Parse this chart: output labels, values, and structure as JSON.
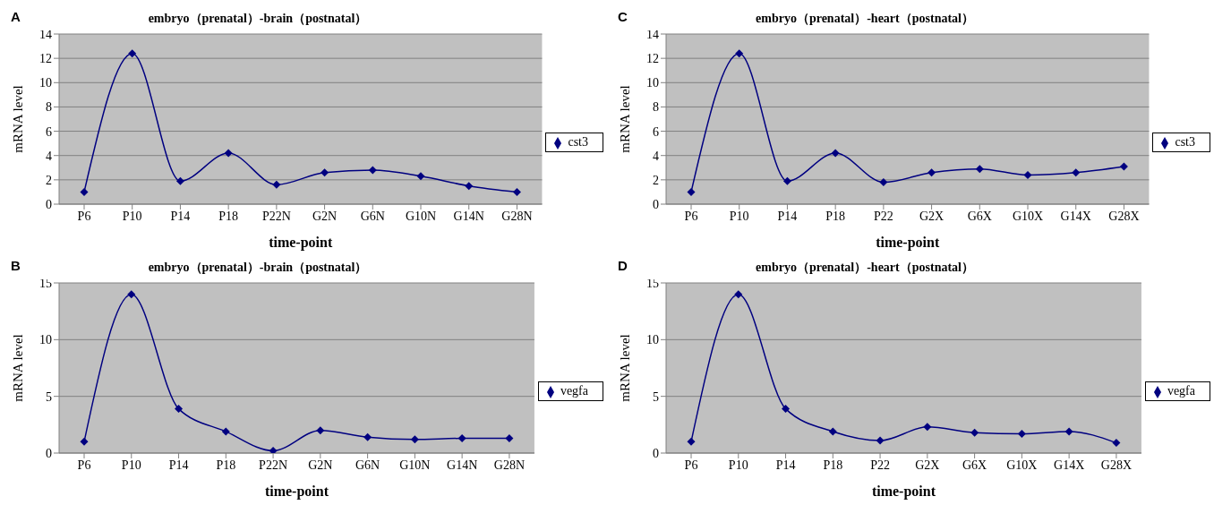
{
  "chart_data": [
    {
      "type": "line",
      "title": "embryo（prenatal）-brain（postnatal）",
      "annotations": [
        "A"
      ],
      "xlabel": "time-point",
      "ylabel": "mRNA level",
      "categories": [
        "P6",
        "P10",
        "P14",
        "P18",
        "P22N",
        "G2N",
        "G6N",
        "G10N",
        "G14N",
        "G28N"
      ],
      "series": [
        {
          "name": "cst3",
          "color": "#000080",
          "values": [
            1.0,
            12.4,
            1.9,
            4.2,
            1.6,
            2.6,
            2.8,
            2.3,
            1.5,
            1.0
          ]
        }
      ],
      "ylim": [
        0,
        14
      ],
      "yticks": [
        0,
        2,
        4,
        6,
        8,
        10,
        12,
        14
      ],
      "grid": "y",
      "legend": "right",
      "marker": "diamond",
      "line_style": "solid"
    },
    {
      "type": "line",
      "title": "embryo（prenatal）-heart（postnatal）",
      "annotations": [
        "C"
      ],
      "xlabel": "time-point",
      "ylabel": "mRNA level",
      "categories": [
        "P6",
        "P10",
        "P14",
        "P18",
        "P22",
        "G2X",
        "G6X",
        "G10X",
        "G14X",
        "G28X"
      ],
      "series": [
        {
          "name": "cst3",
          "color": "#000080",
          "values": [
            1.0,
            12.4,
            1.9,
            4.2,
            1.8,
            2.6,
            2.9,
            2.4,
            2.6,
            3.1
          ]
        }
      ],
      "ylim": [
        0,
        14
      ],
      "yticks": [
        0,
        2,
        4,
        6,
        8,
        10,
        12,
        14
      ],
      "grid": "y",
      "legend": "right",
      "marker": "diamond",
      "line_style": "solid"
    },
    {
      "type": "line",
      "title": "embryo（prenatal）-brain（postnatal）",
      "annotations": [
        "B"
      ],
      "xlabel": "time-point",
      "ylabel": "mRNA level",
      "categories": [
        "P6",
        "P10",
        "P14",
        "P18",
        "P22N",
        "G2N",
        "G6N",
        "G10N",
        "G14N",
        "G28N"
      ],
      "series": [
        {
          "name": "vegfa",
          "color": "#000080",
          "values": [
            1.0,
            14.0,
            3.9,
            1.9,
            0.2,
            2.0,
            1.4,
            1.2,
            1.3,
            1.3
          ]
        }
      ],
      "ylim": [
        0,
        15
      ],
      "yticks": [
        0,
        5,
        10,
        15
      ],
      "grid": "y",
      "legend": "right",
      "marker": "diamond",
      "line_style": "solid"
    },
    {
      "type": "line",
      "title": "embryo（prenatal）-heart（postnatal）",
      "annotations": [
        "D"
      ],
      "xlabel": "time-point",
      "ylabel": "mRNA level",
      "categories": [
        "P6",
        "P10",
        "P14",
        "P18",
        "P22",
        "G2X",
        "G6X",
        "G10X",
        "G14X",
        "G28X"
      ],
      "series": [
        {
          "name": "vegfa",
          "color": "#000080",
          "values": [
            1.0,
            14.0,
            3.9,
            1.9,
            1.1,
            2.3,
            1.8,
            1.7,
            1.9,
            0.9
          ]
        }
      ],
      "ylim": [
        0,
        15
      ],
      "yticks": [
        0,
        5,
        10,
        15
      ],
      "grid": "y",
      "legend": "right",
      "marker": "diamond",
      "line_style": "solid"
    }
  ]
}
